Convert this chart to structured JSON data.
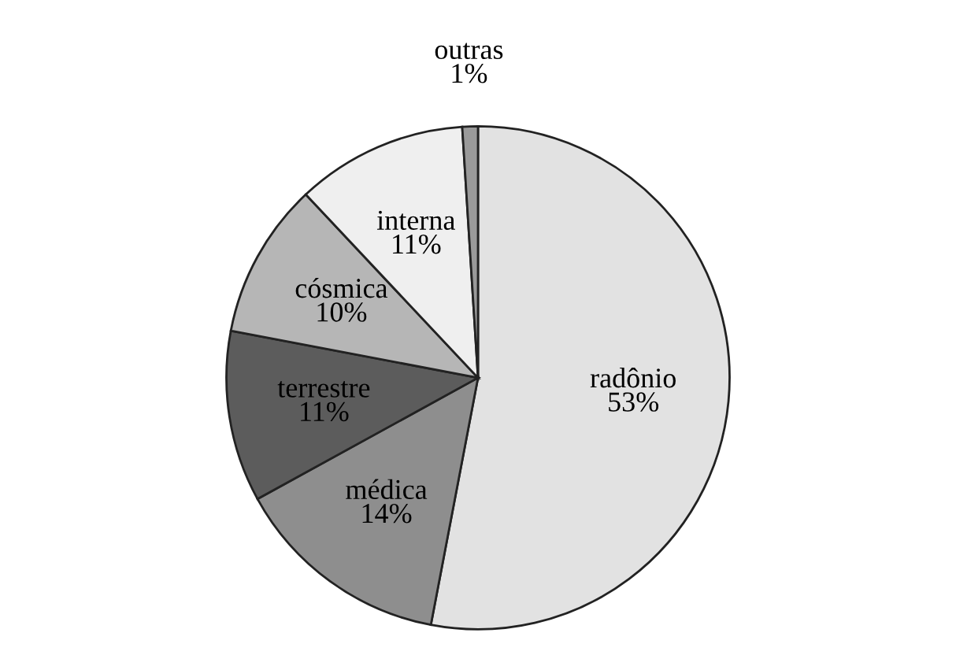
{
  "chart_data": {
    "type": "pie",
    "categories": [
      "radônio",
      "médica",
      "terrestre",
      "cósmica",
      "interna",
      "outras"
    ],
    "values": [
      53,
      14,
      11,
      10,
      11,
      1
    ],
    "colors": [
      "#e2e2e2",
      "#8e8e8e",
      "#5c5c5c",
      "#b6b6b6",
      "#efefef",
      "#9a9a9a"
    ],
    "value_labels": [
      "53%",
      "14%",
      "11%",
      "10%",
      "11%",
      "1%"
    ]
  }
}
